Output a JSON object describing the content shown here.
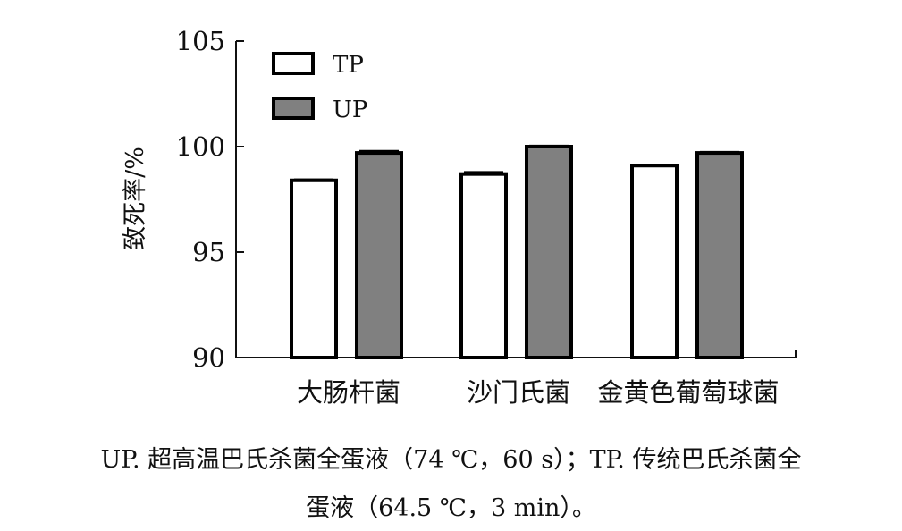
{
  "chart_data": {
    "type": "bar",
    "categories": [
      "大肠杆菌",
      "沙门氏菌",
      "金黄色葡萄球菌"
    ],
    "series": [
      {
        "name": "TP",
        "values": [
          98.4,
          98.7,
          99.1
        ],
        "errors": [
          0.05,
          0.1,
          0.05
        ],
        "color": "#ffffff"
      },
      {
        "name": "UP",
        "values": [
          99.7,
          100.0,
          99.7
        ],
        "errors": [
          0.1,
          0.05,
          0.05
        ],
        "color": "#808080"
      }
    ],
    "title": "",
    "xlabel": "",
    "ylabel": "致死率/%",
    "ylim": [
      90,
      105
    ],
    "yticks": [
      90,
      95,
      100,
      105
    ],
    "legend_position": "top-left",
    "grid": false
  },
  "caption": {
    "line1": "UP. 超高温巴氏杀菌全蛋液（74 ℃，60 s）；TP. 传统巴氏杀菌全",
    "line2": "蛋液（64.5 ℃，3 min）。"
  }
}
